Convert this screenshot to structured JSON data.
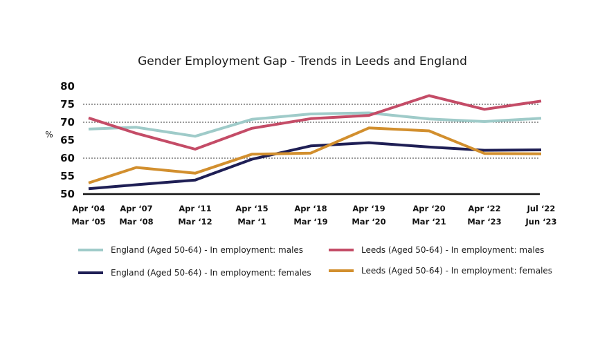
{
  "chart_data": {
    "type": "line",
    "title": "Gender Employment Gap - Trends in Leeds and England",
    "ylabel": "%",
    "xlabel": "",
    "ylim": [
      50,
      80
    ],
    "yticks": [
      "80",
      "75",
      "70",
      "65",
      "60",
      "55",
      "50"
    ],
    "grid": "dotted horizontal lines at 75, 70 and 60",
    "legend_position": "bottom",
    "categories": [
      [
        "Apr ‘04",
        "Mar ‘05"
      ],
      [
        "Apr ‘07",
        "Mar ‘08"
      ],
      [
        "Apr ‘11",
        "Mar ‘12"
      ],
      [
        "Apr ‘15",
        "Mar ‘1"
      ],
      [
        "Apr ‘18",
        "Mar ‘19"
      ],
      [
        "Apr ‘19",
        "Mar ‘20"
      ],
      [
        "Apr ‘20",
        "Mar ‘21"
      ],
      [
        "Apr ‘22",
        "Mar ‘23"
      ],
      [
        "Jul ‘22",
        "Jun ‘23"
      ]
    ],
    "series": [
      {
        "name": "England (Aged 50-64) - In employment: males",
        "color": "#9fcbc9",
        "values": [
          68.1,
          68.6,
          66.1,
          70.8,
          72.3,
          72.6,
          70.9,
          70.2,
          71.1
        ]
      },
      {
        "name": "Leeds (Aged 50-64) - In employment: males",
        "color": "#c44c67",
        "values": [
          71.2,
          66.9,
          62.5,
          68.3,
          71.0,
          71.9,
          77.4,
          73.6,
          75.9
        ]
      },
      {
        "name": "England (Aged 50-64) - In employment: females",
        "color": "#1f1f55",
        "values": [
          51.5,
          52.6,
          53.9,
          59.7,
          63.4,
          64.3,
          63.1,
          62.2,
          62.3
        ]
      },
      {
        "name": "Leeds (Aged 50-64) - In employment: females",
        "color": "#d28f2e",
        "values": [
          53.1,
          57.4,
          55.8,
          61.1,
          61.4,
          68.4,
          67.6,
          61.3,
          61.2
        ]
      }
    ]
  }
}
